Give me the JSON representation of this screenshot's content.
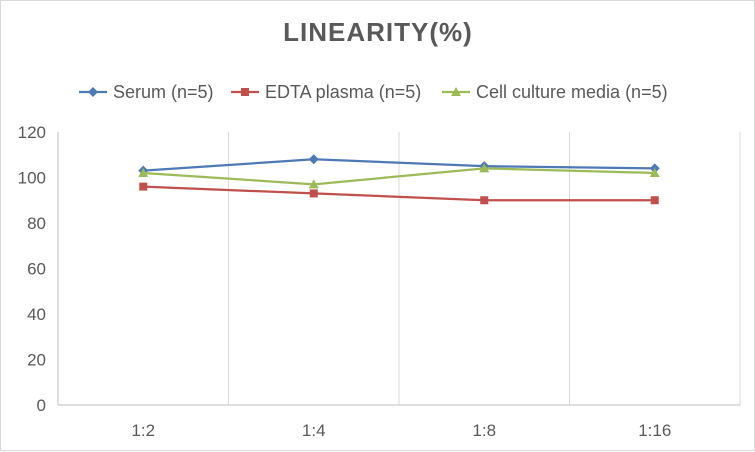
{
  "chart_data": {
    "type": "line",
    "title": "LINEARITY(%)",
    "xlabel": "",
    "ylabel": "",
    "categories": [
      "1:2",
      "1:4",
      "1:8",
      "1:16"
    ],
    "ylim": [
      0,
      120
    ],
    "yticks": [
      0,
      20,
      40,
      60,
      80,
      100,
      120
    ],
    "grid": "vertical",
    "legend_position": "top",
    "series": [
      {
        "name": "Serum (n=5)",
        "values": [
          103,
          108,
          105,
          104
        ],
        "color": "#4e79b5",
        "marker": "diamond"
      },
      {
        "name": "EDTA plasma (n=5)",
        "values": [
          96,
          93,
          90,
          90
        ],
        "color": "#c0504d",
        "marker": "square"
      },
      {
        "name": "Cell culture media (n=5)",
        "values": [
          102,
          97,
          104,
          102
        ],
        "color": "#9bbb59",
        "marker": "triangle"
      }
    ]
  }
}
